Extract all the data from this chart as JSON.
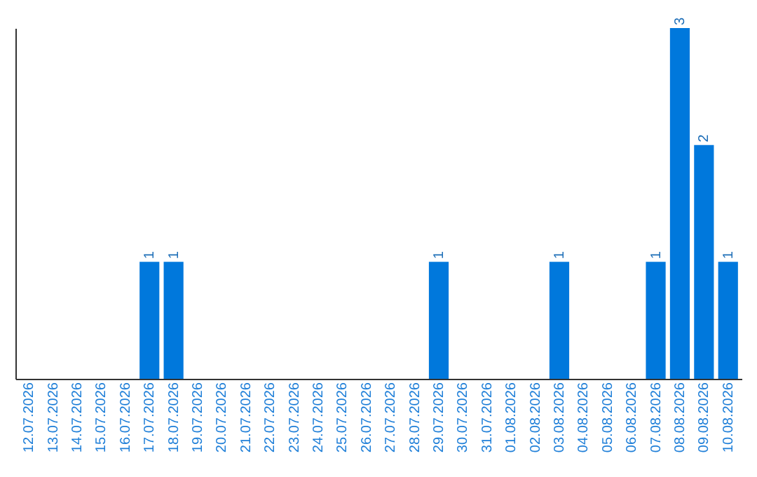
{
  "chart_data": {
    "type": "bar",
    "categories": [
      "12.07.2026",
      "13.07.2026",
      "14.07.2026",
      "15.07.2026",
      "16.07.2026",
      "17.07.2026",
      "18.07.2026",
      "19.07.2026",
      "20.07.2026",
      "21.07.2026",
      "22.07.2026",
      "23.07.2026",
      "24.07.2026",
      "25.07.2026",
      "26.07.2026",
      "27.07.2026",
      "28.07.2026",
      "29.07.2026",
      "30.07.2026",
      "31.07.2026",
      "01.08.2026",
      "02.08.2026",
      "03.08.2026",
      "04.08.2026",
      "05.08.2026",
      "06.08.2026",
      "07.08.2026",
      "08.08.2026",
      "09.08.2026",
      "10.08.2026"
    ],
    "values": [
      0,
      0,
      0,
      0,
      0,
      1,
      1,
      0,
      0,
      0,
      0,
      0,
      0,
      0,
      0,
      0,
      0,
      1,
      0,
      0,
      0,
      0,
      1,
      0,
      0,
      0,
      1,
      3,
      2,
      1
    ],
    "value_labels": [
      null,
      null,
      null,
      null,
      null,
      "1",
      "1",
      null,
      null,
      null,
      null,
      null,
      null,
      null,
      null,
      null,
      null,
      "1",
      null,
      null,
      null,
      null,
      "1",
      null,
      null,
      null,
      "1",
      "3",
      "2",
      "1"
    ],
    "color": "#0078dc",
    "grid": false
  }
}
